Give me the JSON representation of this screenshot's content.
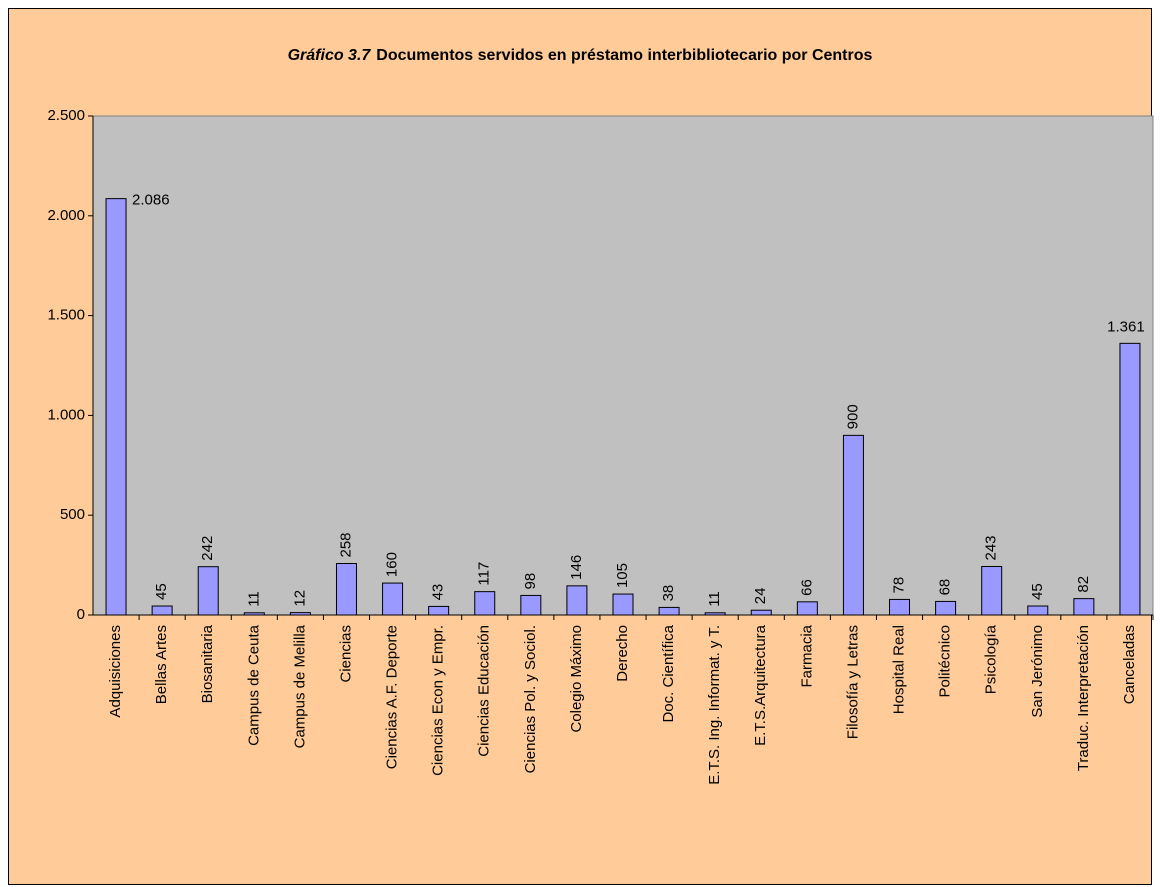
{
  "chart_data": {
    "type": "bar",
    "title_number": "Gráfico 3.7",
    "title": "Documentos servidos en préstamo interbibliotecario por Centros",
    "categories": [
      "Adquisiciones",
      "Bellas Artes",
      "Biosanitaria",
      "Campus de Ceuta",
      "Campus de Melilla",
      "Ciencias",
      "Ciencias A.F. Deporte",
      "Ciencias Econ y Empr.",
      "Ciencias Educación",
      "Ciencias Pol. y Sociol.",
      "Colegio Máximo",
      "Derecho",
      "Doc. Científica",
      "E.T.S. Ing. Informat. y T.",
      "E.T.S.Arquitectura",
      "Farmacia",
      "Filosofía y Letras",
      "Hospital Real",
      "Politécnico",
      "Psicología",
      "San Jerónimo",
      "Traduc. Interpretación",
      "Canceladas"
    ],
    "values": [
      2086,
      45,
      242,
      11,
      12,
      258,
      160,
      43,
      117,
      98,
      146,
      105,
      38,
      11,
      24,
      66,
      900,
      78,
      68,
      243,
      45,
      82,
      1361
    ],
    "value_labels": [
      "2.086",
      "45",
      "242",
      "11",
      "12",
      "258",
      "160",
      "43",
      "117",
      "98",
      "146",
      "105",
      "38",
      "11",
      "24",
      "66",
      "900",
      "78",
      "68",
      "243",
      "45",
      "82",
      "1.361"
    ],
    "color": "#9999ff",
    "ylim": [
      0,
      2500
    ],
    "yticks": [
      0,
      500,
      {
        "value": 1000,
        "label": "1.000"
      },
      {
        "value": 1500,
        "label": "1.500"
      },
      {
        "value": 2000,
        "label": "2.000"
      },
      {
        "value": 2500,
        "label": "2.500"
      }
    ]
  }
}
